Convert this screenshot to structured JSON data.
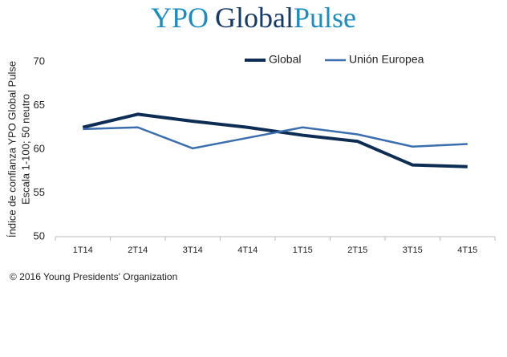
{
  "logo": [
    "YPO",
    "Global",
    "Pulse"
  ],
  "chart_data": {
    "type": "line",
    "ylabel": [
      "Índice de confianza YPO Global Pulse",
      "Escala 1-100; 50 neutro"
    ],
    "categories": [
      "1T14",
      "2T14",
      "3T14",
      "4T14",
      "1T15",
      "2T15",
      "3T15",
      "4T15"
    ],
    "series": [
      {
        "name": "Global",
        "color": "#0e2d55",
        "values": [
          62.5,
          64.0,
          63.2,
          62.5,
          61.6,
          60.9,
          58.2,
          58.0
        ]
      },
      {
        "name": "Unión Europea",
        "color": "#3b6eae",
        "values": [
          62.3,
          62.5,
          60.1,
          61.3,
          62.5,
          61.7,
          60.3,
          60.6
        ]
      }
    ],
    "ylim": [
      50,
      70
    ],
    "yticks": [
      50,
      55,
      60,
      65,
      70
    ],
    "grid": false,
    "legend": "top"
  },
  "footer": "© 2016 Young Presidents' Organization"
}
